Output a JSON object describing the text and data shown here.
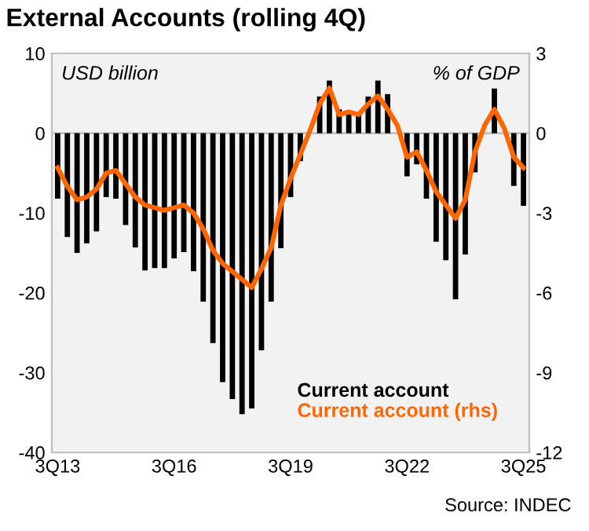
{
  "chart_data": {
    "type": "bar",
    "title": "External Accounts (rolling 4Q)",
    "ylabel": "USD billion",
    "y2label": "% of GDP",
    "categories": [
      "3Q13",
      null,
      null,
      null,
      null,
      null,
      null,
      null,
      null,
      null,
      null,
      null,
      "3Q16",
      null,
      null,
      null,
      null,
      null,
      null,
      null,
      null,
      null,
      null,
      null,
      "3Q19",
      null,
      null,
      null,
      null,
      null,
      null,
      null,
      null,
      null,
      null,
      null,
      "3Q22",
      null,
      null,
      null,
      null,
      null,
      null,
      null,
      null,
      null,
      null,
      null,
      "3Q25"
    ],
    "series": [
      {
        "name": "Current account",
        "color": "#000000",
        "values": [
          -8.2,
          -13.0,
          -15.0,
          -13.8,
          -12.3,
          -8.0,
          -8.2,
          -11.5,
          -14.3,
          -17.2,
          -16.9,
          -16.9,
          -15.7,
          -14.9,
          -17.3,
          -21.1,
          -26.3,
          -31.2,
          -33.3,
          -35.2,
          -34.5,
          -27.2,
          -21.1,
          -14.4,
          -8.0,
          -3.5,
          null,
          4.6,
          6.6,
          3.0,
          2.8,
          2.4,
          4.6,
          6.6,
          4.9,
          null,
          -5.4,
          -3.9,
          -8.2,
          -13.6,
          -15.9,
          -20.8,
          -15.2,
          -4.9,
          null,
          5.6,
          null,
          -6.6,
          -9.1
        ]
      },
      {
        "name": "Current account (rhs)",
        "color": "#ff6600",
        "type": "line",
        "axis": "y2",
        "values": [
          -1.3,
          -2.0,
          -2.5,
          -2.4,
          -2.1,
          -1.5,
          -1.4,
          -1.9,
          -2.4,
          -2.7,
          -2.8,
          -2.9,
          -2.8,
          -2.7,
          -3.0,
          -3.6,
          -4.4,
          -4.9,
          -5.2,
          -5.5,
          -5.8,
          -5.1,
          -4.3,
          -2.7,
          -1.7,
          -0.8,
          0.1,
          1.1,
          1.7,
          0.7,
          0.8,
          0.7,
          1.1,
          1.4,
          0.9,
          0.3,
          -0.9,
          -0.7,
          -1.4,
          -2.2,
          -2.7,
          -3.2,
          -2.5,
          -0.7,
          0.3,
          0.9,
          0.2,
          -0.9,
          -1.3
        ]
      }
    ],
    "ylim": [
      -40,
      10
    ],
    "yticks": [
      -40,
      -30,
      -20,
      -10,
      0,
      10
    ],
    "y2lim": [
      -12,
      3
    ],
    "y2ticks": [
      -12,
      -9,
      -6,
      -3,
      0,
      3
    ],
    "ref_lines": [
      {
        "axis": "y",
        "value": 0,
        "color": "#c0c0c0"
      }
    ],
    "legend": "bottom right",
    "grid": false,
    "annotations": [
      "Source: INDEC"
    ]
  }
}
